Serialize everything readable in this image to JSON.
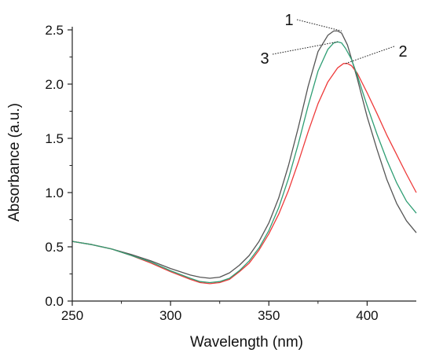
{
  "chart_data": {
    "type": "line",
    "title": "",
    "xlabel": "Wavelength (nm)",
    "ylabel": "Absorbance (a.u.)",
    "xlim": [
      250,
      425
    ],
    "ylim": [
      0.0,
      2.5
    ],
    "x_ticks": [
      250,
      300,
      350,
      400
    ],
    "y_ticks": [
      0.0,
      0.5,
      1.0,
      1.5,
      2.0,
      2.5
    ],
    "x_tick_labels": [
      "250",
      "300",
      "350",
      "400"
    ],
    "y_tick_labels": [
      "0.0",
      "0.5",
      "1.0",
      "1.5",
      "2.0",
      "2.5"
    ],
    "grid": false,
    "legend": "none",
    "series": [
      {
        "color": "#555555",
        "x": [
          250,
          260,
          270,
          280,
          290,
          300,
          310,
          315,
          320,
          325,
          330,
          335,
          340,
          345,
          350,
          355,
          360,
          365,
          370,
          375,
          380,
          383,
          385,
          387,
          390,
          395,
          400,
          405,
          410,
          415,
          420,
          425
        ],
        "y": [
          0.55,
          0.52,
          0.48,
          0.43,
          0.37,
          0.3,
          0.24,
          0.22,
          0.21,
          0.22,
          0.26,
          0.33,
          0.42,
          0.55,
          0.72,
          0.95,
          1.25,
          1.6,
          1.98,
          2.3,
          2.45,
          2.49,
          2.49,
          2.47,
          2.36,
          2.05,
          1.7,
          1.4,
          1.12,
          0.9,
          0.74,
          0.63
        ]
      },
      {
        "color": "#ee3a3a",
        "x": [
          250,
          260,
          270,
          280,
          290,
          300,
          310,
          315,
          320,
          325,
          330,
          335,
          340,
          345,
          350,
          355,
          360,
          365,
          370,
          375,
          380,
          385,
          388,
          390,
          392,
          395,
          400,
          405,
          410,
          415,
          420,
          425
        ],
        "y": [
          0.55,
          0.52,
          0.48,
          0.42,
          0.35,
          0.27,
          0.2,
          0.17,
          0.16,
          0.17,
          0.2,
          0.27,
          0.35,
          0.47,
          0.62,
          0.8,
          1.02,
          1.28,
          1.56,
          1.82,
          2.02,
          2.15,
          2.19,
          2.19,
          2.17,
          2.1,
          1.92,
          1.73,
          1.53,
          1.35,
          1.17,
          1.0
        ]
      },
      {
        "color": "#2f9e74",
        "x": [
          250,
          260,
          270,
          280,
          290,
          300,
          310,
          315,
          320,
          325,
          330,
          335,
          340,
          345,
          350,
          355,
          360,
          365,
          370,
          375,
          380,
          383,
          385,
          387,
          389,
          392,
          395,
          400,
          405,
          410,
          415,
          420,
          425
        ],
        "y": [
          0.55,
          0.52,
          0.48,
          0.42,
          0.36,
          0.28,
          0.21,
          0.18,
          0.17,
          0.18,
          0.21,
          0.28,
          0.37,
          0.49,
          0.65,
          0.86,
          1.13,
          1.45,
          1.8,
          2.12,
          2.32,
          2.38,
          2.39,
          2.38,
          2.33,
          2.23,
          2.08,
          1.8,
          1.54,
          1.3,
          1.09,
          0.92,
          0.81
        ]
      }
    ],
    "annotations": [
      {
        "text": "1",
        "x": 387,
        "y": 2.49
      },
      {
        "text": "2",
        "x": 389,
        "y": 2.19
      },
      {
        "text": "3",
        "x": 385,
        "y": 2.39
      }
    ]
  }
}
